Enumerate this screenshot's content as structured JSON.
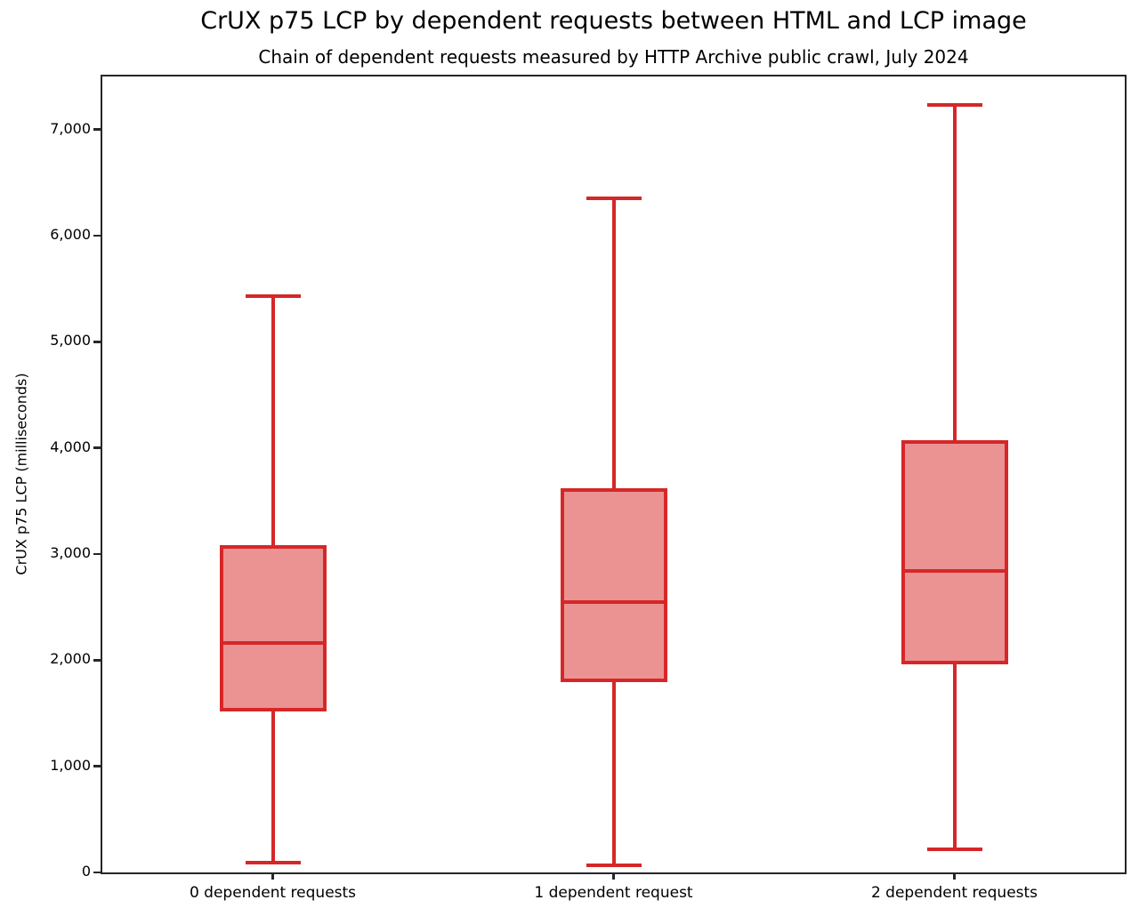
{
  "figure": {
    "title": "CrUX p75 LCP by dependent requests between HTML and LCP image",
    "subtitle": "Chain of dependent requests measured by HTTP Archive public crawl, July 2024"
  },
  "chart_data": {
    "type": "boxplot",
    "title": "CrUX p75 LCP by dependent requests between HTML and LCP image",
    "subtitle": "Chain of dependent requests measured by HTTP Archive public crawl, July 2024",
    "xlabel": "",
    "ylabel": "CrUX p75 LCP (milliseconds)",
    "units": "milliseconds",
    "ylim": [
      0,
      7500
    ],
    "grid": false,
    "legend": null,
    "y_ticks": [
      {
        "value": 0,
        "label": "0"
      },
      {
        "value": 1000,
        "label": "1,000"
      },
      {
        "value": 2000,
        "label": "2,000"
      },
      {
        "value": 3000,
        "label": "3,000"
      },
      {
        "value": 4000,
        "label": "4,000"
      },
      {
        "value": 5000,
        "label": "5,000"
      },
      {
        "value": 6000,
        "label": "6,000"
      },
      {
        "value": 7000,
        "label": "7,000"
      }
    ],
    "categories": [
      "0 dependent requests",
      "1 dependent request",
      "2 dependent requests"
    ],
    "series": [
      {
        "category": "0 dependent requests",
        "whisker_low": 90,
        "q1": 1530,
        "median": 2160,
        "q3": 3070,
        "whisker_high": 5430
      },
      {
        "category": "1 dependent request",
        "whisker_low": 70,
        "q1": 1810,
        "median": 2550,
        "q3": 3600,
        "whisker_high": 6350
      },
      {
        "category": "2 dependent requests",
        "whisker_low": 220,
        "q1": 1980,
        "median": 2840,
        "q3": 4060,
        "whisker_high": 7230
      }
    ],
    "colors": {
      "box_line": "#d62728",
      "box_fill": "#eb9393",
      "axis": "#262626",
      "text": "#000000",
      "background": "#ffffff"
    }
  }
}
